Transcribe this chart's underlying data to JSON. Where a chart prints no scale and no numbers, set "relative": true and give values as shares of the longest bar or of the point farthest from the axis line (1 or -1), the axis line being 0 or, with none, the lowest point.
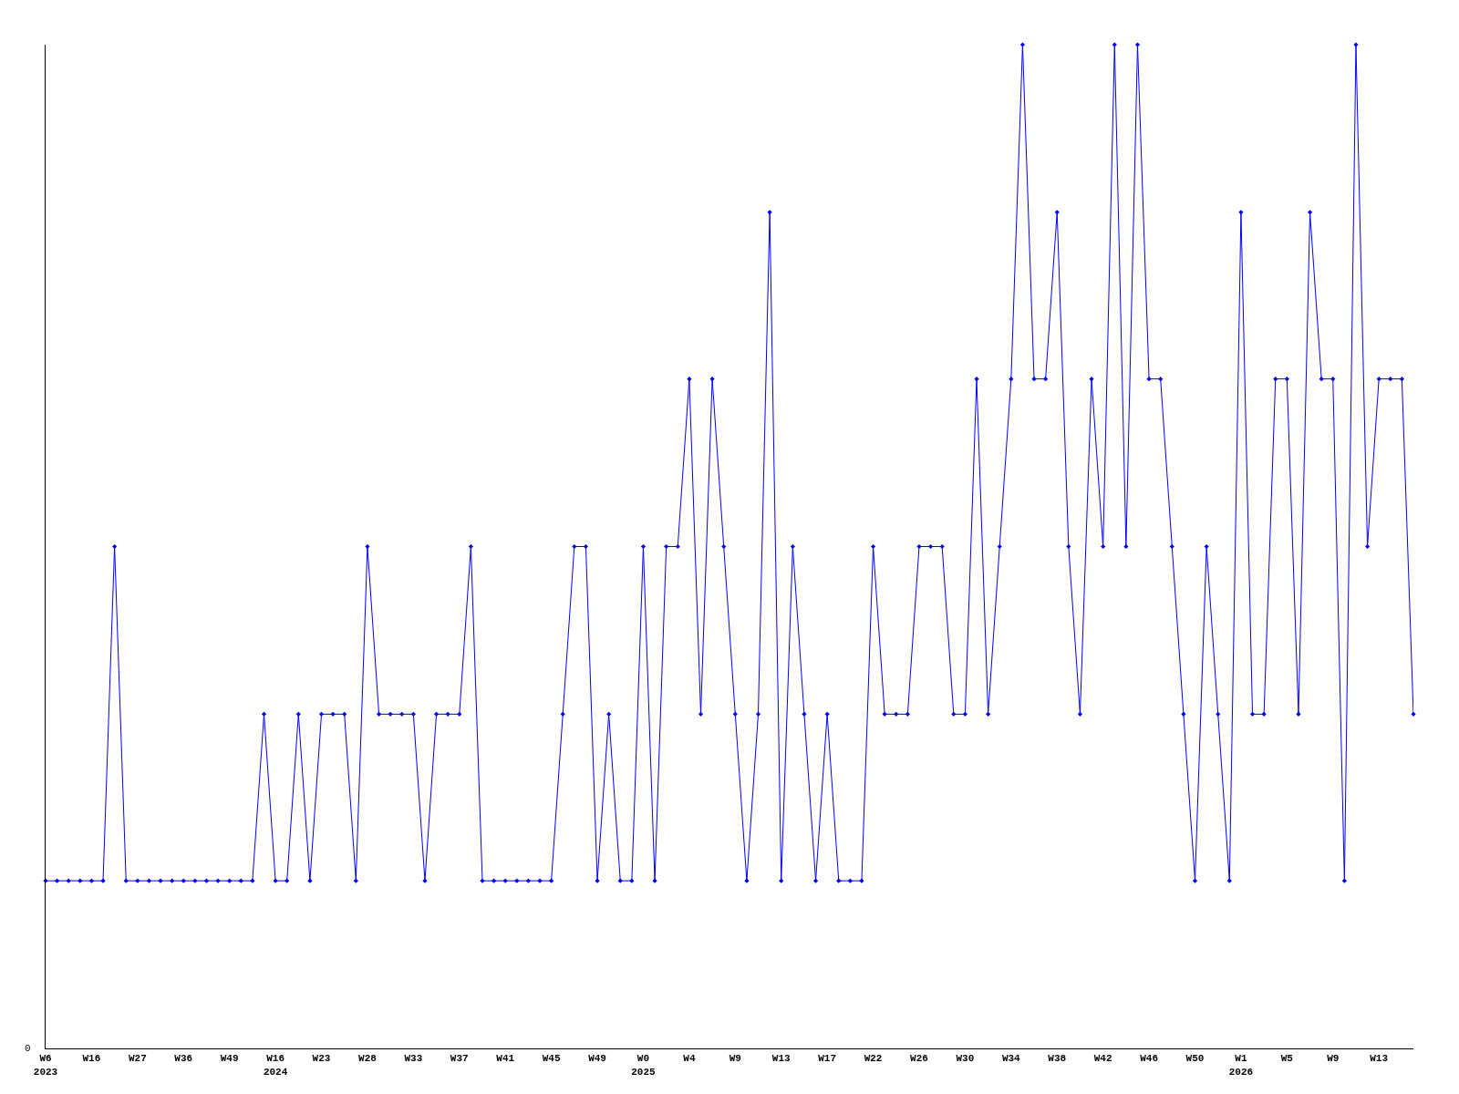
{
  "chart_data": {
    "type": "line",
    "relative": true,
    "color": "#0000ff",
    "marker": "diamond",
    "line_style": "solid",
    "grid": false,
    "legend": false,
    "annotations": [
      "0"
    ],
    "categories": [
      "W6\n2023",
      null,
      null,
      null,
      "W16",
      null,
      null,
      null,
      "W27",
      null,
      null,
      null,
      "W36",
      null,
      null,
      null,
      "W49",
      null,
      null,
      null,
      "W16\n2024",
      null,
      null,
      null,
      "W23",
      null,
      null,
      null,
      "W28",
      null,
      null,
      null,
      "W33",
      null,
      null,
      null,
      "W37",
      null,
      null,
      null,
      "W41",
      null,
      null,
      null,
      "W45",
      null,
      null,
      null,
      "W49",
      null,
      null,
      null,
      "W0\n2025",
      null,
      null,
      null,
      "W4",
      null,
      null,
      null,
      "W9",
      null,
      null,
      null,
      "W13",
      null,
      null,
      null,
      "W17",
      null,
      null,
      null,
      "W22",
      null,
      null,
      null,
      "W26",
      null,
      null,
      null,
      "W30",
      null,
      null,
      null,
      "W34",
      null,
      null,
      null,
      "W38",
      null,
      null,
      null,
      "W42",
      null,
      null,
      null,
      "W46",
      null,
      null,
      null,
      "W50",
      null,
      null,
      null,
      "W1\n2026",
      null,
      null,
      null,
      "W5",
      null,
      null,
      null,
      "W9",
      null,
      null,
      null,
      "W13",
      null,
      null,
      null
    ],
    "values": [
      0.167,
      0.167,
      0.167,
      0.167,
      0.167,
      0.167,
      0.5,
      0.167,
      0.167,
      0.167,
      0.167,
      0.167,
      0.167,
      0.167,
      0.167,
      0.167,
      0.167,
      0.167,
      0.167,
      0.333,
      0.167,
      0.167,
      0.333,
      0.167,
      0.333,
      0.333,
      0.333,
      0.167,
      0.5,
      0.333,
      0.333,
      0.333,
      0.333,
      0.167,
      0.333,
      0.333,
      0.333,
      0.5,
      0.167,
      0.167,
      0.167,
      0.167,
      0.167,
      0.167,
      0.167,
      0.333,
      0.5,
      0.5,
      0.167,
      0.333,
      0.167,
      0.167,
      0.5,
      0.167,
      0.5,
      0.5,
      0.667,
      0.333,
      0.667,
      0.5,
      0.333,
      0.167,
      0.333,
      0.833,
      0.167,
      0.5,
      0.333,
      0.167,
      0.333,
      0.167,
      0.167,
      0.167,
      0.5,
      0.333,
      0.333,
      0.333,
      0.5,
      0.5,
      0.5,
      0.333,
      0.333,
      0.667,
      0.333,
      0.5,
      0.667,
      1,
      0.667,
      0.667,
      0.833,
      0.5,
      0.333,
      0.667,
      0.5,
      1,
      0.5,
      1,
      0.667,
      0.667,
      0.5,
      0.333,
      0.167,
      0.5,
      0.333,
      0.167,
      0.833,
      0.333,
      0.333,
      0.667,
      0.667,
      0.333,
      0.833,
      0.667,
      0.667,
      0.167,
      1,
      0.5,
      0.667,
      0.667,
      0.667,
      0.333
    ]
  }
}
